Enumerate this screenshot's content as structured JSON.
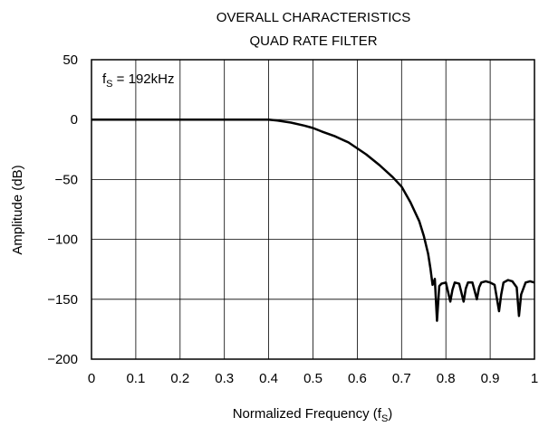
{
  "chart_data": {
    "type": "line",
    "title": [
      "OVERALL CHARACTERISTICS",
      "QUAD RATE FILTER"
    ],
    "xlabel": "Normalized Frequency (f",
    "xlabel_sub": "S",
    "xlabel_end": ")",
    "ylabel": "Amplitude (dB)",
    "annotation": {
      "main": "f",
      "sub": "S",
      "rest": " = 192kHz"
    },
    "xlim": [
      0,
      1
    ],
    "ylim": [
      -200,
      50
    ],
    "grid": true,
    "x_ticks": [
      0,
      0.1,
      0.2,
      0.3,
      0.4,
      0.5,
      0.6,
      0.7,
      0.8,
      0.9,
      1
    ],
    "x_tick_labels": [
      "0",
      "0.1",
      "0.2",
      "0.3",
      "0.4",
      "0.5",
      "0.6",
      "0.7",
      "0.8",
      "0.9",
      "1"
    ],
    "y_ticks": [
      50,
      0,
      -50,
      -100,
      -150,
      -200
    ],
    "y_tick_labels": [
      "50",
      "0",
      "−50",
      "−100",
      "−150",
      "−200"
    ],
    "series": [
      {
        "x": [
          0,
          0.1,
          0.2,
          0.3,
          0.4,
          0.42,
          0.45,
          0.48,
          0.5,
          0.52,
          0.55,
          0.58,
          0.6,
          0.62,
          0.65,
          0.68,
          0.7,
          0.72,
          0.74,
          0.75,
          0.76,
          0.765,
          0.77,
          0.775,
          0.78,
          0.785,
          0.79,
          0.8,
          0.81,
          0.815,
          0.82,
          0.83,
          0.84,
          0.845,
          0.85,
          0.86,
          0.87,
          0.875,
          0.88,
          0.89,
          0.9,
          0.91,
          0.92,
          0.925,
          0.93,
          0.94,
          0.95,
          0.96,
          0.965,
          0.97,
          0.98,
          0.99,
          1.0
        ],
        "y": [
          0,
          0,
          0,
          0,
          0,
          -0.8,
          -2.5,
          -5,
          -7,
          -10,
          -14,
          -19,
          -24,
          -29,
          -38,
          -48,
          -56,
          -69,
          -85,
          -97,
          -112,
          -124,
          -138,
          -133,
          -168,
          -139,
          -137,
          -136,
          -152,
          -142,
          -136,
          -137,
          -152,
          -141,
          -136,
          -136,
          -150,
          -140,
          -136,
          -135,
          -136,
          -138,
          -160,
          -146,
          -136,
          -134,
          -135,
          -140,
          -164,
          -146,
          -136,
          -135,
          -136
        ],
        "color": "#000000"
      }
    ]
  }
}
